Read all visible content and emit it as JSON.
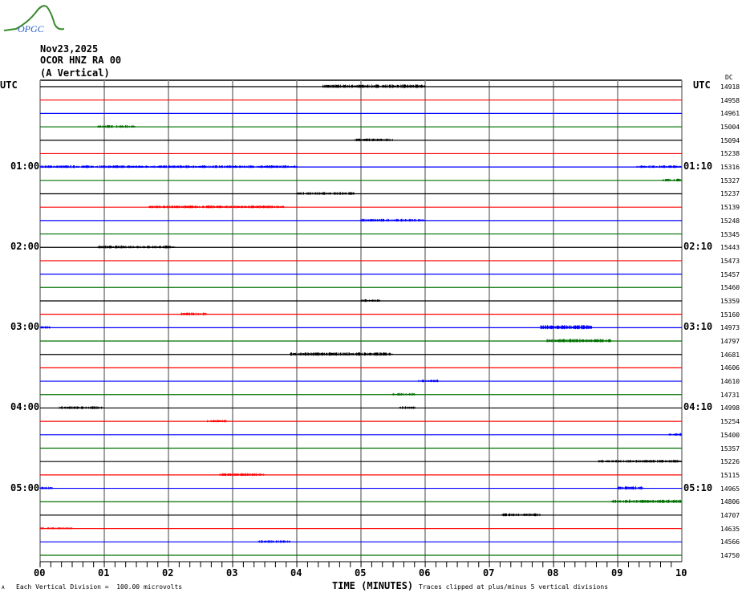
{
  "logo": {
    "text": "OPGC",
    "colors": {
      "curve": "#3a8a2e",
      "text": "#2a5fc8"
    }
  },
  "header": {
    "date": "Nov23,2025",
    "station": "OCOR HNZ RA 00",
    "component": "(A Vertical)"
  },
  "utc_left": "UTC",
  "utc_right": "UTC",
  "dc_header": "DC",
  "chart_data": {
    "type": "line",
    "title": "",
    "xlabel": "TIME (MINUTES)",
    "xlim": [
      0,
      10
    ],
    "x_ticks": [
      "00",
      "01",
      "02",
      "03",
      "04",
      "05",
      "06",
      "07",
      "08",
      "09",
      "10"
    ],
    "minor_tick_step_min": 0.1667,
    "grid": true,
    "trace_colors": [
      "#000000",
      "#ff0000",
      "#0000ff",
      "#007000"
    ],
    "grid_color": "#808080",
    "traces": [
      {
        "dc": "14918",
        "bursts": [
          [
            4.4,
            6.0,
            0.25
          ]
        ]
      },
      {
        "dc": "14958",
        "bursts": []
      },
      {
        "dc": "14961",
        "bursts": []
      },
      {
        "dc": "15004",
        "bursts": [
          [
            0.9,
            1.5,
            0.2
          ]
        ]
      },
      {
        "dc": "15094",
        "bursts": [
          [
            4.9,
            5.5,
            0.2
          ]
        ]
      },
      {
        "dc": "15238",
        "bursts": []
      },
      {
        "dc": "15316",
        "left": "01:00",
        "right": "01:10",
        "bursts": [
          [
            0,
            4.0,
            0.2
          ],
          [
            9.3,
            10,
            0.2
          ]
        ]
      },
      {
        "dc": "15327",
        "bursts": [
          [
            9.7,
            10,
            0.2
          ]
        ]
      },
      {
        "dc": "15237",
        "bursts": [
          [
            4.0,
            4.9,
            0.2
          ]
        ]
      },
      {
        "dc": "15139",
        "bursts": [
          [
            1.7,
            3.8,
            0.2
          ]
        ]
      },
      {
        "dc": "15248",
        "bursts": [
          [
            5.0,
            6.0,
            0.2
          ]
        ]
      },
      {
        "dc": "15345",
        "bursts": []
      },
      {
        "dc": "15443",
        "left": "02:00",
        "right": "02:10",
        "bursts": [
          [
            0.9,
            2.1,
            0.2
          ]
        ]
      },
      {
        "dc": "15473",
        "bursts": []
      },
      {
        "dc": "15457",
        "bursts": []
      },
      {
        "dc": "15460",
        "bursts": []
      },
      {
        "dc": "15359",
        "bursts": [
          [
            5.0,
            5.3,
            0.2
          ]
        ]
      },
      {
        "dc": "15160",
        "bursts": [
          [
            2.2,
            2.6,
            0.2
          ]
        ]
      },
      {
        "dc": "14973",
        "left": "03:00",
        "right": "03:10",
        "bursts": [
          [
            0,
            0.15,
            0.2
          ],
          [
            7.8,
            8.6,
            0.3
          ]
        ]
      },
      {
        "dc": "14797",
        "bursts": [
          [
            7.9,
            8.9,
            0.25
          ]
        ]
      },
      {
        "dc": "14681",
        "bursts": [
          [
            3.9,
            5.5,
            0.25
          ]
        ]
      },
      {
        "dc": "14606",
        "bursts": []
      },
      {
        "dc": "14610",
        "bursts": [
          [
            5.9,
            6.2,
            0.2
          ]
        ]
      },
      {
        "dc": "14731",
        "bursts": [
          [
            5.5,
            5.85,
            0.2
          ]
        ]
      },
      {
        "dc": "14998",
        "left": "04:00",
        "right": "04:10",
        "bursts": [
          [
            0.3,
            1.0,
            0.2
          ],
          [
            5.6,
            5.85,
            0.2
          ]
        ]
      },
      {
        "dc": "15254",
        "bursts": [
          [
            2.6,
            2.9,
            0.2
          ]
        ]
      },
      {
        "dc": "15400",
        "bursts": [
          [
            9.8,
            10,
            0.2
          ]
        ]
      },
      {
        "dc": "15357",
        "bursts": []
      },
      {
        "dc": "15226",
        "bursts": [
          [
            8.7,
            10,
            0.2
          ]
        ]
      },
      {
        "dc": "15115",
        "bursts": [
          [
            2.8,
            3.5,
            0.2
          ]
        ]
      },
      {
        "dc": "14965",
        "left": "05:00",
        "right": "05:10",
        "bursts": [
          [
            0,
            0.2,
            0.2
          ],
          [
            9.0,
            9.4,
            0.25
          ]
        ]
      },
      {
        "dc": "14806",
        "bursts": [
          [
            8.9,
            10,
            0.25
          ]
        ]
      },
      {
        "dc": "14707",
        "bursts": [
          [
            7.2,
            7.8,
            0.2
          ]
        ]
      },
      {
        "dc": "14635",
        "bursts": [
          [
            0,
            0.5,
            0.15
          ]
        ]
      },
      {
        "dc": "14566",
        "bursts": [
          [
            3.4,
            3.9,
            0.2
          ]
        ]
      },
      {
        "dc": "14750",
        "bursts": []
      }
    ]
  },
  "footer": {
    "corner_mark": "A",
    "scale_note": "Each Vertical Division =  100.00 microvolts",
    "time_label": "TIME (MINUTES)",
    "clip_note": "Traces clipped at plus/minus 5 vertical divisions"
  }
}
